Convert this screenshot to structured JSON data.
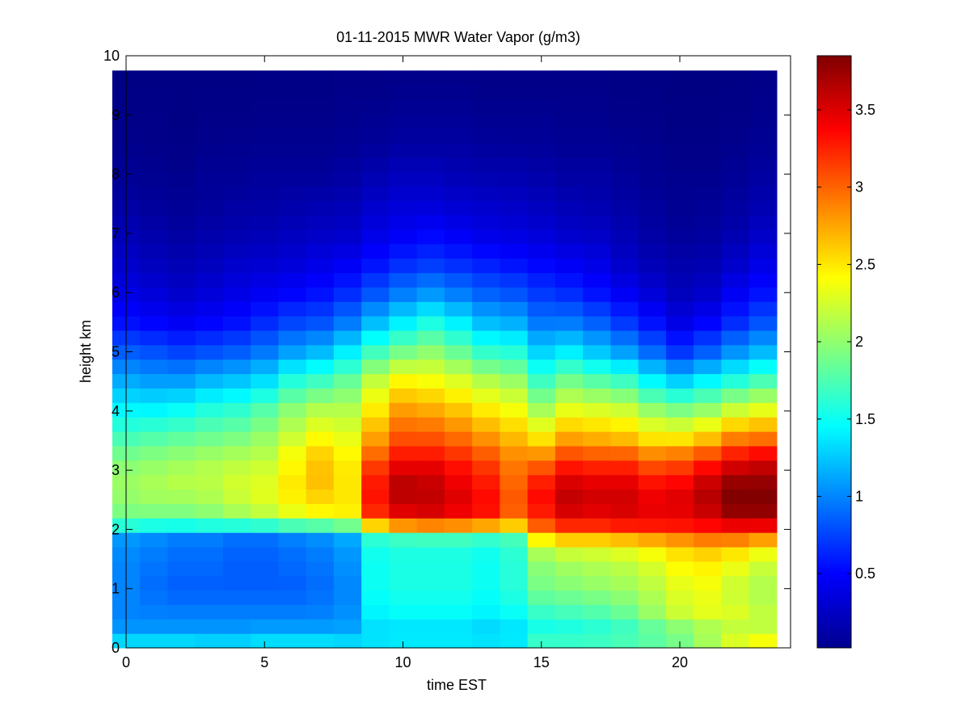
{
  "chart_data": {
    "type": "heatmap",
    "title": "01-11-2015 MWR Water Vapor (g/m3)",
    "xlabel": "time EST",
    "ylabel": "height km",
    "xlim": [
      0,
      24
    ],
    "ylim": [
      0,
      10
    ],
    "xticks": [
      "0",
      "5",
      "10",
      "15",
      "20"
    ],
    "yticks": [
      "0",
      "1",
      "2",
      "3",
      "4",
      "5",
      "6",
      "7",
      "8",
      "9",
      "10"
    ],
    "colorbar": {
      "colormap": "jet",
      "range": [
        0.02,
        3.85
      ],
      "ticks": [
        "0.5",
        "1",
        "1.5",
        "2",
        "2.5",
        "3",
        "3.5"
      ]
    },
    "grid": false,
    "x_centers": [
      0.5,
      1.5,
      2.5,
      3.5,
      4.5,
      5.5,
      6.5,
      7.5,
      8.5,
      9.5,
      10.5,
      11.5,
      12.5,
      13.5,
      14.5,
      15.5,
      16.5,
      17.5,
      18.5,
      19.5,
      20.5,
      21.5,
      22.5,
      23.5
    ],
    "profile_heights_km": [
      0,
      0.25,
      0.5,
      1.0,
      1.5,
      1.75,
      2.0,
      2.1,
      2.25,
      2.5,
      2.75,
      3.0,
      3.25,
      3.5,
      4.0,
      4.5,
      5.0,
      5.5,
      6.0,
      6.5,
      7.0,
      7.5,
      8.0,
      8.5,
      9.0,
      9.75
    ],
    "profiles_g_m3": [
      [
        1.5,
        1.1,
        1.0,
        1.0,
        1.0,
        1.05,
        1.1,
        1.8,
        1.9,
        2.0,
        2.05,
        2.0,
        1.9,
        1.75,
        1.45,
        1.15,
        0.85,
        0.55,
        0.4,
        0.3,
        0.22,
        0.15,
        0.1,
        0.07,
        0.05,
        0.04
      ],
      [
        1.5,
        1.1,
        1.0,
        0.9,
        0.95,
        1.0,
        1.05,
        1.75,
        1.9,
        2.05,
        2.1,
        2.05,
        1.95,
        1.8,
        1.45,
        1.1,
        0.8,
        0.5,
        0.35,
        0.25,
        0.18,
        0.12,
        0.08,
        0.06,
        0.05,
        0.04
      ],
      [
        1.5,
        1.1,
        1.0,
        0.85,
        0.9,
        0.95,
        1.0,
        1.75,
        1.9,
        2.05,
        2.15,
        2.1,
        2.0,
        1.85,
        1.5,
        1.1,
        0.75,
        0.45,
        0.3,
        0.22,
        0.15,
        0.1,
        0.07,
        0.05,
        0.04,
        0.04
      ],
      [
        1.45,
        1.1,
        1.0,
        0.85,
        0.9,
        0.95,
        1.0,
        1.8,
        1.95,
        2.1,
        2.15,
        2.15,
        2.05,
        1.9,
        1.6,
        1.2,
        0.8,
        0.5,
        0.35,
        0.25,
        0.18,
        0.12,
        0.1,
        0.07,
        0.05,
        0.04
      ],
      [
        1.45,
        1.1,
        1.0,
        0.85,
        0.85,
        0.9,
        0.95,
        1.85,
        2.05,
        2.2,
        2.25,
        2.2,
        2.1,
        1.95,
        1.65,
        1.25,
        0.85,
        0.55,
        0.4,
        0.3,
        0.2,
        0.15,
        0.1,
        0.08,
        0.05,
        0.04
      ],
      [
        1.5,
        1.15,
        1.0,
        0.85,
        0.85,
        0.9,
        0.95,
        1.9,
        2.15,
        2.3,
        2.3,
        2.25,
        2.15,
        2.05,
        1.8,
        1.35,
        0.95,
        0.65,
        0.45,
        0.32,
        0.22,
        0.16,
        0.12,
        0.08,
        0.06,
        0.04
      ],
      [
        1.5,
        1.15,
        1.0,
        0.85,
        0.9,
        0.95,
        1.05,
        2.0,
        2.3,
        2.45,
        2.5,
        2.45,
        2.4,
        2.25,
        2.0,
        1.6,
        1.1,
        0.75,
        0.5,
        0.35,
        0.25,
        0.18,
        0.12,
        0.08,
        0.06,
        0.04
      ],
      [
        1.5,
        1.15,
        1.0,
        0.9,
        0.95,
        1.0,
        1.1,
        2.05,
        2.4,
        2.55,
        2.65,
        2.65,
        2.6,
        2.45,
        2.15,
        1.7,
        1.2,
        0.8,
        0.55,
        0.4,
        0.28,
        0.2,
        0.12,
        0.08,
        0.06,
        0.04
      ],
      [
        1.45,
        1.15,
        1.05,
        1.0,
        1.05,
        1.1,
        1.2,
        2.15,
        2.45,
        2.5,
        2.5,
        2.5,
        2.45,
        2.35,
        2.15,
        1.85,
        1.4,
        0.95,
        0.65,
        0.45,
        0.3,
        0.22,
        0.15,
        0.1,
        0.07,
        0.05
      ],
      [
        1.4,
        1.3,
        1.4,
        1.5,
        1.5,
        1.55,
        1.75,
        2.9,
        3.2,
        3.3,
        3.3,
        3.2,
        3.0,
        2.8,
        2.5,
        2.2,
        1.7,
        1.2,
        0.8,
        0.55,
        0.4,
        0.3,
        0.2,
        0.12,
        0.08,
        0.05
      ],
      [
        1.45,
        1.3,
        1.45,
        1.55,
        1.55,
        1.6,
        1.85,
        3.2,
        3.45,
        3.6,
        3.65,
        3.5,
        3.3,
        3.1,
        2.8,
        2.45,
        1.9,
        1.4,
        0.95,
        0.65,
        0.45,
        0.35,
        0.25,
        0.15,
        0.1,
        0.05
      ],
      [
        1.45,
        1.3,
        1.45,
        1.55,
        1.55,
        1.6,
        1.9,
        3.25,
        3.5,
        3.6,
        3.6,
        3.5,
        3.3,
        3.1,
        2.75,
        2.4,
        2.0,
        1.55,
        1.05,
        0.7,
        0.5,
        0.35,
        0.25,
        0.15,
        0.1,
        0.05
      ],
      [
        1.45,
        1.3,
        1.45,
        1.55,
        1.55,
        1.6,
        1.9,
        3.2,
        3.4,
        3.5,
        3.45,
        3.35,
        3.2,
        3.0,
        2.65,
        2.3,
        1.85,
        1.4,
        0.95,
        0.65,
        0.45,
        0.32,
        0.22,
        0.15,
        0.1,
        0.05
      ],
      [
        1.45,
        1.25,
        1.4,
        1.5,
        1.5,
        1.55,
        1.85,
        3.1,
        3.3,
        3.35,
        3.3,
        3.2,
        3.05,
        2.85,
        2.5,
        2.15,
        1.65,
        1.2,
        0.85,
        0.6,
        0.4,
        0.3,
        0.2,
        0.13,
        0.08,
        0.05
      ],
      [
        1.45,
        1.3,
        1.45,
        1.6,
        1.6,
        1.65,
        1.85,
        2.9,
        3.0,
        3.05,
        3.0,
        2.95,
        2.85,
        2.7,
        2.4,
        2.05,
        1.6,
        1.15,
        0.8,
        0.55,
        0.38,
        0.28,
        0.2,
        0.12,
        0.08,
        0.05
      ],
      [
        1.8,
        1.5,
        1.6,
        1.9,
        2.0,
        2.25,
        2.85,
        3.1,
        3.25,
        3.35,
        3.3,
        3.1,
        2.85,
        2.55,
        2.1,
        1.7,
        1.3,
        0.95,
        0.7,
        0.5,
        0.35,
        0.25,
        0.18,
        0.12,
        0.08,
        0.05
      ],
      [
        1.8,
        1.5,
        1.65,
        1.95,
        2.1,
        2.4,
        3.05,
        3.3,
        3.5,
        3.6,
        3.55,
        3.35,
        3.1,
        2.8,
        2.35,
        1.9,
        1.4,
        0.95,
        0.65,
        0.45,
        0.3,
        0.22,
        0.15,
        0.1,
        0.07,
        0.05
      ],
      [
        1.8,
        1.55,
        1.7,
        2.0,
        2.15,
        2.4,
        3.05,
        3.3,
        3.45,
        3.55,
        3.5,
        3.3,
        3.05,
        2.75,
        2.3,
        1.8,
        1.25,
        0.85,
        0.55,
        0.4,
        0.28,
        0.2,
        0.15,
        0.1,
        0.07,
        0.05
      ],
      [
        1.85,
        1.6,
        1.8,
        2.05,
        2.2,
        2.45,
        3.1,
        3.35,
        3.5,
        3.55,
        3.5,
        3.3,
        3.05,
        2.7,
        2.25,
        1.7,
        1.1,
        0.7,
        0.45,
        0.3,
        0.22,
        0.16,
        0.12,
        0.08,
        0.06,
        0.04
      ],
      [
        1.9,
        1.7,
        2.0,
        2.15,
        2.3,
        2.55,
        3.15,
        3.35,
        3.45,
        3.45,
        3.35,
        3.15,
        2.9,
        2.55,
        2.05,
        1.45,
        0.9,
        0.55,
        0.35,
        0.22,
        0.16,
        0.12,
        0.09,
        0.07,
        0.05,
        0.04
      ],
      [
        2.0,
        1.8,
        2.2,
        2.3,
        2.45,
        2.65,
        3.2,
        3.35,
        3.45,
        3.5,
        3.4,
        3.2,
        2.95,
        2.55,
        1.95,
        1.3,
        0.7,
        0.4,
        0.25,
        0.18,
        0.12,
        0.09,
        0.07,
        0.05,
        0.04,
        0.03
      ],
      [
        2.2,
        1.95,
        2.3,
        2.35,
        2.5,
        2.75,
        3.25,
        3.4,
        3.55,
        3.65,
        3.6,
        3.4,
        3.1,
        2.7,
        2.05,
        1.45,
        0.85,
        0.5,
        0.3,
        0.2,
        0.14,
        0.1,
        0.07,
        0.05,
        0.04,
        0.03
      ],
      [
        2.45,
        2.1,
        2.3,
        2.2,
        2.4,
        2.7,
        3.3,
        3.5,
        3.75,
        3.85,
        3.8,
        3.6,
        3.3,
        2.95,
        2.25,
        1.6,
        1.05,
        0.65,
        0.45,
        0.3,
        0.2,
        0.14,
        0.1,
        0.07,
        0.05,
        0.04
      ],
      [
        2.6,
        2.15,
        2.2,
        2.1,
        2.25,
        2.55,
        3.25,
        3.5,
        3.75,
        3.85,
        3.8,
        3.65,
        3.4,
        3.0,
        2.35,
        1.75,
        1.2,
        0.8,
        0.55,
        0.4,
        0.28,
        0.2,
        0.14,
        0.1,
        0.07,
        0.05
      ]
    ]
  }
}
